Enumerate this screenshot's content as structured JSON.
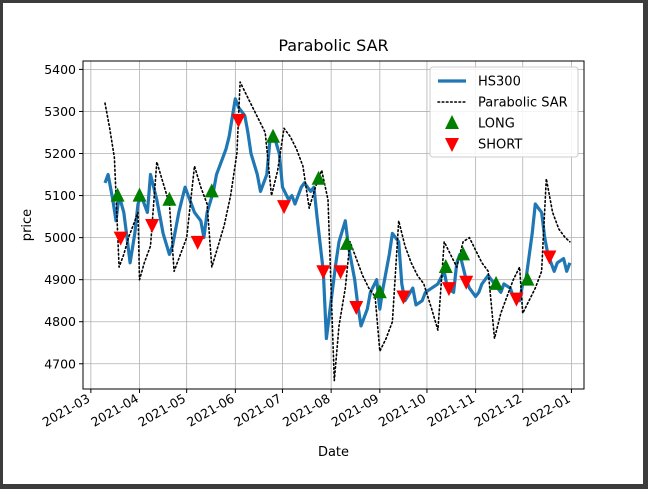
{
  "chart_data": {
    "type": "line",
    "title": "Parabolic SAR",
    "xlabel": "Date",
    "ylabel": "price",
    "ylim": [
      4640,
      5420
    ],
    "xlim": [
      "2021-02-24",
      "2022-01-09"
    ],
    "yticks": [
      4700,
      4800,
      4900,
      5000,
      5100,
      5200,
      5300,
      5400
    ],
    "xticks": [
      "2021-03-01",
      "2021-04-01",
      "2021-05-01",
      "2021-06-01",
      "2021-07-01",
      "2021-08-01",
      "2021-09-01",
      "2021-10-01",
      "2021-11-01",
      "2021-12-01",
      "2022-01-01"
    ],
    "xtick_labels": [
      "2021-03",
      "2021-04",
      "2021-05",
      "2021-06",
      "2021-07",
      "2021-08",
      "2021-09",
      "2021-10",
      "2021-11",
      "2021-12",
      "2022-01"
    ],
    "grid": true,
    "legend_position": "top-right",
    "series": [
      {
        "name": "HS300",
        "style": "solid",
        "color": "#1f77b4",
        "points": [
          [
            "2021-03-10",
            5130
          ],
          [
            "2021-03-12",
            5150
          ],
          [
            "2021-03-15",
            5090
          ],
          [
            "2021-03-17",
            5040
          ],
          [
            "2021-03-19",
            5100
          ],
          [
            "2021-03-22",
            5060
          ],
          [
            "2021-03-24",
            5000
          ],
          [
            "2021-03-26",
            4940
          ],
          [
            "2021-03-29",
            5010
          ],
          [
            "2021-03-31",
            5080
          ],
          [
            "2021-04-02",
            5100
          ],
          [
            "2021-04-06",
            5060
          ],
          [
            "2021-04-08",
            5150
          ],
          [
            "2021-04-12",
            5090
          ],
          [
            "2021-04-14",
            5050
          ],
          [
            "2021-04-16",
            5010
          ],
          [
            "2021-04-20",
            4960
          ],
          [
            "2021-04-22",
            4980
          ],
          [
            "2021-04-26",
            5060
          ],
          [
            "2021-04-28",
            5090
          ],
          [
            "2021-04-30",
            5120
          ],
          [
            "2021-05-06",
            5060
          ],
          [
            "2021-05-10",
            5040
          ],
          [
            "2021-05-12",
            5000
          ],
          [
            "2021-05-14",
            5060
          ],
          [
            "2021-05-18",
            5110
          ],
          [
            "2021-05-20",
            5150
          ],
          [
            "2021-05-24",
            5190
          ],
          [
            "2021-05-26",
            5210
          ],
          [
            "2021-05-28",
            5240
          ],
          [
            "2021-06-01",
            5330
          ],
          [
            "2021-06-03",
            5310
          ],
          [
            "2021-06-07",
            5290
          ],
          [
            "2021-06-09",
            5250
          ],
          [
            "2021-06-11",
            5200
          ],
          [
            "2021-06-15",
            5150
          ],
          [
            "2021-06-17",
            5110
          ],
          [
            "2021-06-21",
            5150
          ],
          [
            "2021-06-23",
            5230
          ],
          [
            "2021-06-25",
            5250
          ],
          [
            "2021-06-29",
            5200
          ],
          [
            "2021-07-01",
            5120
          ],
          [
            "2021-07-05",
            5090
          ],
          [
            "2021-07-07",
            5100
          ],
          [
            "2021-07-09",
            5080
          ],
          [
            "2021-07-13",
            5120
          ],
          [
            "2021-07-15",
            5130
          ],
          [
            "2021-07-19",
            5110
          ],
          [
            "2021-07-21",
            5120
          ],
          [
            "2021-07-23",
            5050
          ],
          [
            "2021-07-27",
            4920
          ],
          [
            "2021-07-29",
            4760
          ],
          [
            "2021-08-02",
            4880
          ],
          [
            "2021-08-04",
            4940
          ],
          [
            "2021-08-06",
            4990
          ],
          [
            "2021-08-10",
            5040
          ],
          [
            "2021-08-12",
            4980
          ],
          [
            "2021-08-16",
            4900
          ],
          [
            "2021-08-18",
            4840
          ],
          [
            "2021-08-20",
            4790
          ],
          [
            "2021-08-24",
            4830
          ],
          [
            "2021-08-26",
            4870
          ],
          [
            "2021-08-30",
            4900
          ],
          [
            "2021-09-01",
            4830
          ],
          [
            "2021-09-03",
            4880
          ],
          [
            "2021-09-07",
            4960
          ],
          [
            "2021-09-09",
            5010
          ],
          [
            "2021-09-13",
            4990
          ],
          [
            "2021-09-15",
            4890
          ],
          [
            "2021-09-17",
            4850
          ],
          [
            "2021-09-22",
            4880
          ],
          [
            "2021-09-24",
            4840
          ],
          [
            "2021-09-28",
            4850
          ],
          [
            "2021-09-30",
            4870
          ],
          [
            "2021-10-08",
            4890
          ],
          [
            "2021-10-12",
            4920
          ],
          [
            "2021-10-14",
            4880
          ],
          [
            "2021-10-18",
            4870
          ],
          [
            "2021-10-20",
            4940
          ],
          [
            "2021-10-22",
            4960
          ],
          [
            "2021-10-26",
            4900
          ],
          [
            "2021-10-28",
            4880
          ],
          [
            "2021-11-01",
            4860
          ],
          [
            "2021-11-03",
            4870
          ],
          [
            "2021-11-05",
            4890
          ],
          [
            "2021-11-09",
            4910
          ],
          [
            "2021-11-11",
            4900
          ],
          [
            "2021-11-15",
            4880
          ],
          [
            "2021-11-17",
            4870
          ],
          [
            "2021-11-19",
            4890
          ],
          [
            "2021-11-23",
            4880
          ],
          [
            "2021-11-25",
            4860
          ],
          [
            "2021-11-29",
            4850
          ],
          [
            "2021-12-01",
            4890
          ],
          [
            "2021-12-03",
            4900
          ],
          [
            "2021-12-07",
            5010
          ],
          [
            "2021-12-09",
            5080
          ],
          [
            "2021-12-13",
            5060
          ],
          [
            "2021-12-15",
            5000
          ],
          [
            "2021-12-17",
            4960
          ],
          [
            "2021-12-21",
            4920
          ],
          [
            "2021-12-23",
            4940
          ],
          [
            "2021-12-27",
            4950
          ],
          [
            "2021-12-29",
            4920
          ],
          [
            "2021-12-31",
            4940
          ]
        ]
      },
      {
        "name": "Parabolic SAR",
        "style": "dotted",
        "color": "#000000",
        "points": [
          [
            "2021-03-10",
            5320
          ],
          [
            "2021-03-13",
            5260
          ],
          [
            "2021-03-16",
            5190
          ],
          [
            "2021-03-19",
            4930
          ],
          [
            "2021-03-22",
            4960
          ],
          [
            "2021-03-25",
            5000
          ],
          [
            "2021-03-28",
            5030
          ],
          [
            "2021-03-31",
            5060
          ],
          [
            "2021-04-01",
            4900
          ],
          [
            "2021-04-04",
            4940
          ],
          [
            "2021-04-08",
            4980
          ],
          [
            "2021-04-12",
            5180
          ],
          [
            "2021-04-16",
            5130
          ],
          [
            "2021-04-20",
            5080
          ],
          [
            "2021-04-23",
            4920
          ],
          [
            "2021-04-27",
            4960
          ],
          [
            "2021-05-01",
            5000
          ],
          [
            "2021-05-06",
            5170
          ],
          [
            "2021-05-10",
            5120
          ],
          [
            "2021-05-14",
            5080
          ],
          [
            "2021-05-17",
            4930
          ],
          [
            "2021-05-21",
            4980
          ],
          [
            "2021-05-25",
            5030
          ],
          [
            "2021-05-29",
            5100
          ],
          [
            "2021-06-02",
            5200
          ],
          [
            "2021-06-04",
            5370
          ],
          [
            "2021-06-08",
            5340
          ],
          [
            "2021-06-12",
            5310
          ],
          [
            "2021-06-16",
            5280
          ],
          [
            "2021-06-20",
            5250
          ],
          [
            "2021-06-24",
            5100
          ],
          [
            "2021-06-28",
            5160
          ],
          [
            "2021-07-02",
            5260
          ],
          [
            "2021-07-06",
            5240
          ],
          [
            "2021-07-10",
            5210
          ],
          [
            "2021-07-14",
            5170
          ],
          [
            "2021-07-18",
            5070
          ],
          [
            "2021-07-22",
            5120
          ],
          [
            "2021-07-26",
            5160
          ],
          [
            "2021-07-30",
            5090
          ],
          [
            "2021-08-03",
            4660
          ],
          [
            "2021-08-06",
            4790
          ],
          [
            "2021-08-10",
            4880
          ],
          [
            "2021-08-13",
            4990
          ],
          [
            "2021-08-17",
            4950
          ],
          [
            "2021-08-21",
            4910
          ],
          [
            "2021-08-25",
            4880
          ],
          [
            "2021-08-29",
            4860
          ],
          [
            "2021-09-01",
            4730
          ],
          [
            "2021-09-05",
            4760
          ],
          [
            "2021-09-09",
            4800
          ],
          [
            "2021-09-13",
            5040
          ],
          [
            "2021-09-17",
            4980
          ],
          [
            "2021-09-21",
            4940
          ],
          [
            "2021-09-25",
            4910
          ],
          [
            "2021-09-29",
            4890
          ],
          [
            "2021-10-04",
            4830
          ],
          [
            "2021-10-08",
            4780
          ],
          [
            "2021-10-12",
            4990
          ],
          [
            "2021-10-16",
            4960
          ],
          [
            "2021-10-20",
            4930
          ],
          [
            "2021-10-24",
            4990
          ],
          [
            "2021-10-28",
            5000
          ],
          [
            "2021-11-01",
            4970
          ],
          [
            "2021-11-05",
            4940
          ],
          [
            "2021-11-09",
            4920
          ],
          [
            "2021-11-13",
            4760
          ],
          [
            "2021-11-17",
            4820
          ],
          [
            "2021-11-21",
            4860
          ],
          [
            "2021-11-25",
            4900
          ],
          [
            "2021-11-29",
            4930
          ],
          [
            "2021-12-01",
            4820
          ],
          [
            "2021-12-05",
            4850
          ],
          [
            "2021-12-09",
            4880
          ],
          [
            "2021-12-13",
            4920
          ],
          [
            "2021-12-16",
            5140
          ],
          [
            "2021-12-20",
            5060
          ],
          [
            "2021-12-24",
            5020
          ],
          [
            "2021-12-28",
            5000
          ],
          [
            "2021-12-31",
            4990
          ]
        ]
      },
      {
        "name": "LONG",
        "style": "marker-up",
        "color": "#008000",
        "points": [
          [
            "2021-03-18",
            5100
          ],
          [
            "2021-04-01",
            5100
          ],
          [
            "2021-04-20",
            5090
          ],
          [
            "2021-05-17",
            5110
          ],
          [
            "2021-06-25",
            5240
          ],
          [
            "2021-07-24",
            5140
          ],
          [
            "2021-08-11",
            4985
          ],
          [
            "2021-09-01",
            4870
          ],
          [
            "2021-10-13",
            4930
          ],
          [
            "2021-10-24",
            4960
          ],
          [
            "2021-11-14",
            4890
          ],
          [
            "2021-12-04",
            4900
          ]
        ]
      },
      {
        "name": "SHORT",
        "style": "marker-down",
        "color": "#ff0000",
        "points": [
          [
            "2021-03-20",
            5000
          ],
          [
            "2021-04-09",
            5030
          ],
          [
            "2021-05-08",
            4990
          ],
          [
            "2021-06-03",
            5280
          ],
          [
            "2021-07-02",
            5075
          ],
          [
            "2021-07-27",
            4920
          ],
          [
            "2021-08-07",
            4920
          ],
          [
            "2021-08-17",
            4835
          ],
          [
            "2021-09-16",
            4860
          ],
          [
            "2021-10-15",
            4880
          ],
          [
            "2021-10-26",
            4895
          ],
          [
            "2021-11-27",
            4855
          ],
          [
            "2021-12-18",
            4955
          ]
        ]
      }
    ]
  },
  "colors": {
    "hs300": "#1f77b4",
    "sar": "#000000",
    "long": "#008000",
    "short": "#ff0000",
    "grid": "#b0b0b0"
  }
}
